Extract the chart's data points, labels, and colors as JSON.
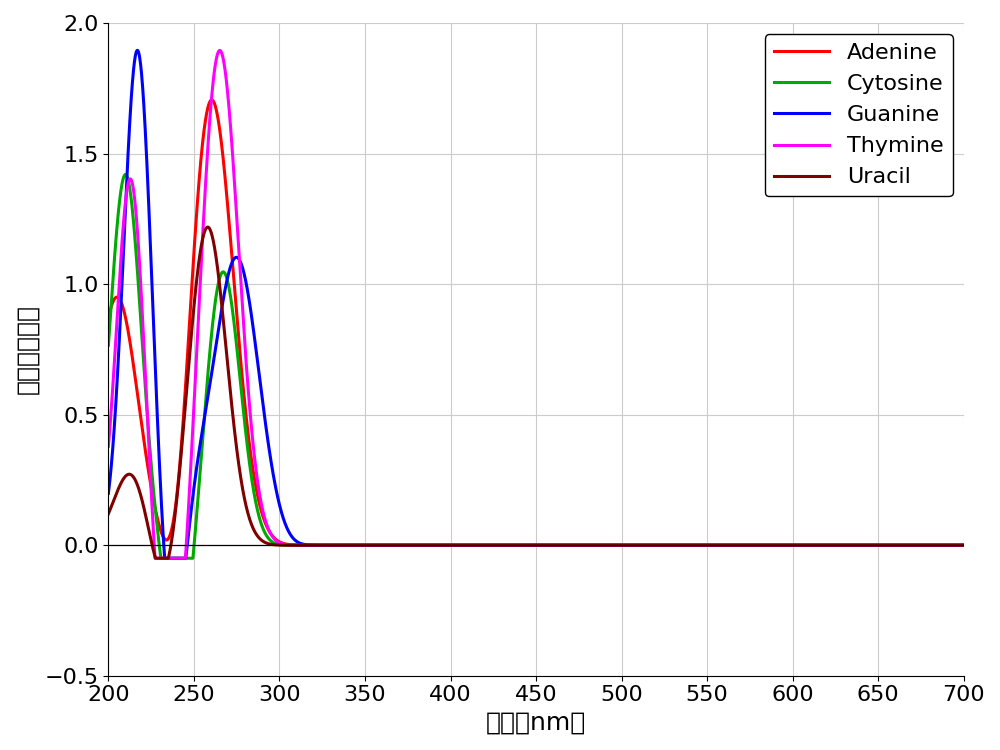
{
  "xlabel": "波長（nm）",
  "ylabel": "モル吸光定数",
  "xlim": [
    200,
    700
  ],
  "ylim": [
    -0.5,
    2.0
  ],
  "xticks": [
    200,
    250,
    300,
    350,
    400,
    450,
    500,
    550,
    600,
    650,
    700
  ],
  "yticks": [
    -0.5,
    0.0,
    0.5,
    1.0,
    1.5,
    2.0
  ],
  "series": {
    "Adenine": {
      "color": "#ff0000",
      "lw": 2.2
    },
    "Cytosine": {
      "color": "#00aa00",
      "lw": 2.2
    },
    "Guanine": {
      "color": "#0000ff",
      "lw": 2.2
    },
    "Thymine": {
      "color": "#ff00ff",
      "lw": 2.2
    },
    "Uracil": {
      "color": "#800000",
      "lw": 2.2
    }
  },
  "legend_fontsize": 16,
  "axis_label_fontsize": 18,
  "tick_fontsize": 16,
  "background_color": "#ffffff",
  "grid_color": "#cccccc"
}
